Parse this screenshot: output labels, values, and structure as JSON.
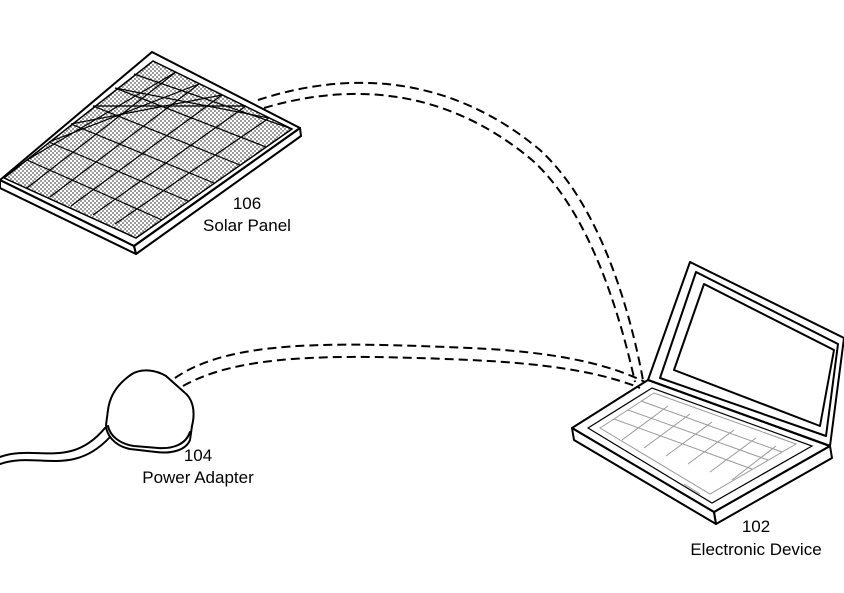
{
  "solar_panel": {
    "ref": "106",
    "name": "Solar Panel"
  },
  "power_adapter": {
    "ref": "104",
    "name": "Power Adapter"
  },
  "electronic_device": {
    "ref": "102",
    "name": "Electronic Device"
  }
}
